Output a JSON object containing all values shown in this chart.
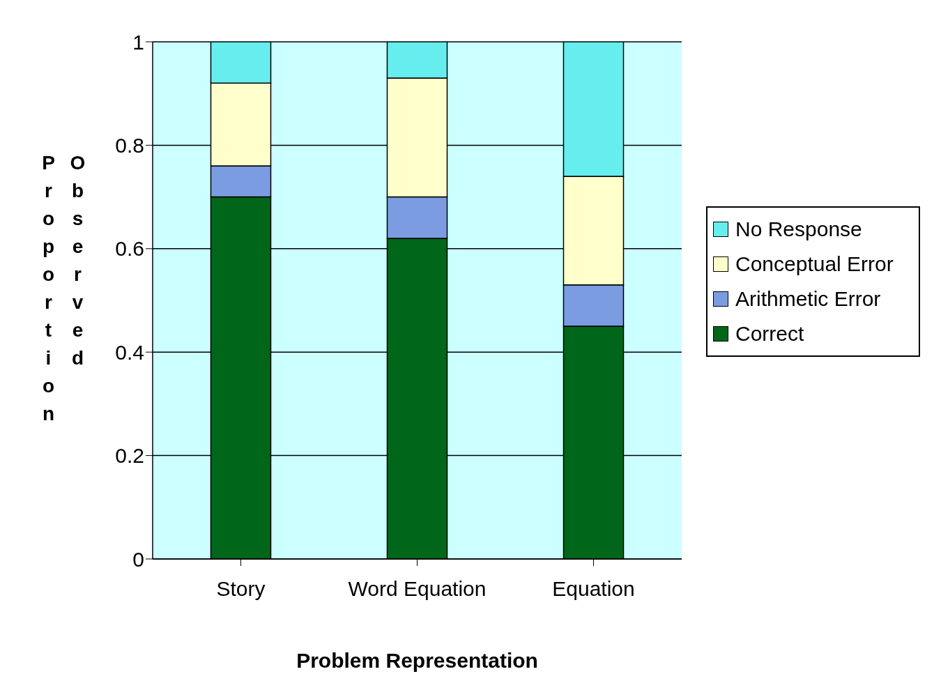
{
  "chart_data": {
    "type": "bar",
    "stacked": true,
    "xlabel": "Problem Representation",
    "ylabel": "Proportion Observed",
    "categories": [
      "Story",
      "Word Equation",
      "Equation"
    ],
    "series": [
      {
        "name": "Correct",
        "color": "#006619",
        "values": [
          0.7,
          0.62,
          0.45
        ]
      },
      {
        "name": "Arithmetic Error",
        "color": "#7b9ce0",
        "values": [
          0.06,
          0.08,
          0.08
        ]
      },
      {
        "name": "Conceptual Error",
        "color": "#ffffcc",
        "values": [
          0.16,
          0.23,
          0.21
        ]
      },
      {
        "name": "No Response",
        "color": "#66eeee",
        "values": [
          0.08,
          0.07,
          0.26
        ]
      }
    ],
    "ylim": [
      0,
      1
    ],
    "yticks": [
      0,
      0.2,
      0.4,
      0.6,
      0.8,
      1
    ],
    "grid": "y",
    "legend": "right"
  }
}
